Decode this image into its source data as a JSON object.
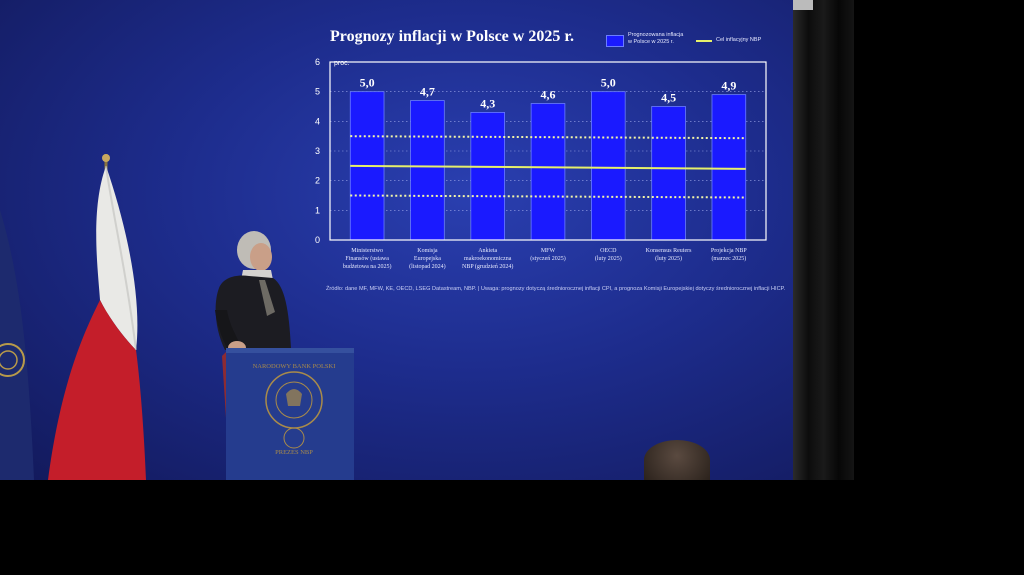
{
  "slide": {
    "title": "Prognozy inflacji w Polsce w 2025 r.",
    "legend": {
      "bar_label_line1": "Prognozowana inflacja",
      "bar_label_line2": "w Polsce w 2025 r.",
      "target_label": "Cel inflacyjny NBP"
    },
    "source_note": "Źródło: dane MF, MFW, KE, OECD, LSEG Datastream, NBP.  |  Uwaga: prognozy dotyczą średniorocznej inflacji CPI, a prognoza Komisji Europejskiej dotyczy średniorocznej inflacji HICP."
  },
  "podium": {
    "emblem_text_top": "NARODOWY BANK POLSKI",
    "emblem_text_bottom": "PREZES NBP"
  },
  "colors": {
    "bar": "#1a1aff",
    "bar_edge": "#6b7dff",
    "target_line": "#e6f06a",
    "band_line": "#f2f5a8",
    "plot_border": "#ffffff",
    "background": "#1d2c8c"
  },
  "chart_data": {
    "type": "bar",
    "title": "Prognozy inflacji w Polsce w 2025 r.",
    "ylabel": "proc.",
    "ylim": [
      0,
      6
    ],
    "yticks": [
      "0",
      "1",
      "2",
      "3",
      "4",
      "5",
      "6"
    ],
    "grid": "dotted horizontal",
    "legend_position": "top-right",
    "categories": [
      [
        "Ministerstwo",
        "Finansów (ustawa",
        "budżetowa na 2025)"
      ],
      [
        "Komisja",
        "Europejska",
        "(listopad 2024)"
      ],
      [
        "Ankieta",
        "makroekonomiczna",
        "NBP (grudzień 2024)"
      ],
      [
        "MFW",
        "(styczeń 2025)"
      ],
      [
        "OECD",
        "(luty 2025)"
      ],
      [
        "Konsensus Reuters",
        "(luty 2025)"
      ],
      [
        "Projekcja NBP",
        "(marzec 2025)"
      ]
    ],
    "series": [
      {
        "name": "Prognozowana inflacja w Polsce w 2025 r.",
        "values": [
          5.0,
          4.7,
          4.3,
          4.6,
          5.0,
          4.5,
          4.9
        ]
      }
    ],
    "value_labels": [
      "5,0",
      "4,7",
      "4,3",
      "4,6",
      "5,0",
      "4,5",
      "4,9"
    ],
    "target": {
      "name": "Cel inflacyjny NBP",
      "value": 2.5,
      "band": [
        1.5,
        3.5
      ]
    }
  }
}
